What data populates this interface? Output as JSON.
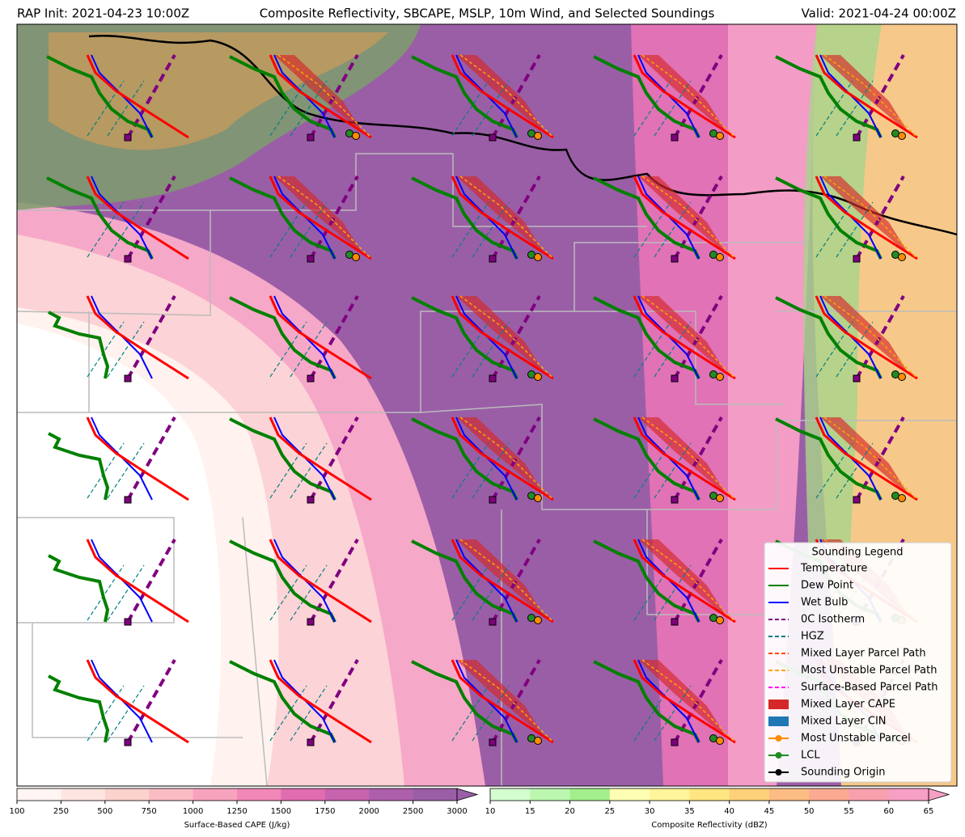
{
  "header": {
    "left": "RAP Init: 2021-04-23 10:00Z",
    "title": "Composite Reflectivity, SBCAPE, MSLP, 10m Wind, and Selected Soundings",
    "right": "Valid: 2021-04-24 00:00Z"
  },
  "legend": {
    "title": "Sounding Legend",
    "items": [
      {
        "label": "Temperature",
        "color": "#ff0000",
        "style": "solid"
      },
      {
        "label": "Dew Point",
        "color": "#008000",
        "style": "solid"
      },
      {
        "label": "Wet Bulb",
        "color": "#0000ff",
        "style": "solid"
      },
      {
        "label": "0C Isotherm",
        "color": "#800080",
        "style": "dashed"
      },
      {
        "label": "HGZ",
        "color": "#008080",
        "style": "dashed"
      },
      {
        "label": "Mixed Layer Parcel Path",
        "color": "#ff4500",
        "style": "dashed"
      },
      {
        "label": "Most Unstable Parcel Path",
        "color": "#ffa500",
        "style": "dashed"
      },
      {
        "label": "Surface-Based Parcel Path",
        "color": "#ff00ff",
        "style": "dashed"
      },
      {
        "label": "Mixed Layer CAPE",
        "color": "#d62728",
        "style": "patch"
      },
      {
        "label": "Mixed Layer CIN",
        "color": "#1f77b4",
        "style": "patch"
      },
      {
        "label": "Most Unstable Parcel",
        "color": "#ff8c00",
        "style": "marker"
      },
      {
        "label": "LCL",
        "color": "#228b22",
        "style": "marker"
      },
      {
        "label": "Sounding Origin",
        "color": "#000000",
        "style": "marker"
      }
    ]
  },
  "colorbars": [
    {
      "label": "Surface-Based CAPE (J/kg)",
      "ticks": [
        100,
        250,
        500,
        750,
        1000,
        1250,
        1500,
        1750,
        2000,
        2500,
        3000
      ],
      "colors": [
        "#fff5f2",
        "#fde6e1",
        "#fcd2cd",
        "#fbbcc4",
        "#f8a3bd",
        "#f188b7",
        "#e16cb0",
        "#c863ae",
        "#ad5fab",
        "#9a5ea6"
      ]
    },
    {
      "label": "Composite Reflectivity (dBZ)",
      "ticks": [
        10,
        15,
        20,
        25,
        30,
        35,
        40,
        45,
        50,
        55,
        60,
        65
      ],
      "colors": [
        "#d4fdd0",
        "#bcf7b0",
        "#a3ef8c",
        "#ffffb3",
        "#fff59a",
        "#ffe680",
        "#fdd07a",
        "#fcbc84",
        "#fbaa92",
        "#f9a0ad",
        "#f79fc4"
      ]
    }
  ]
}
